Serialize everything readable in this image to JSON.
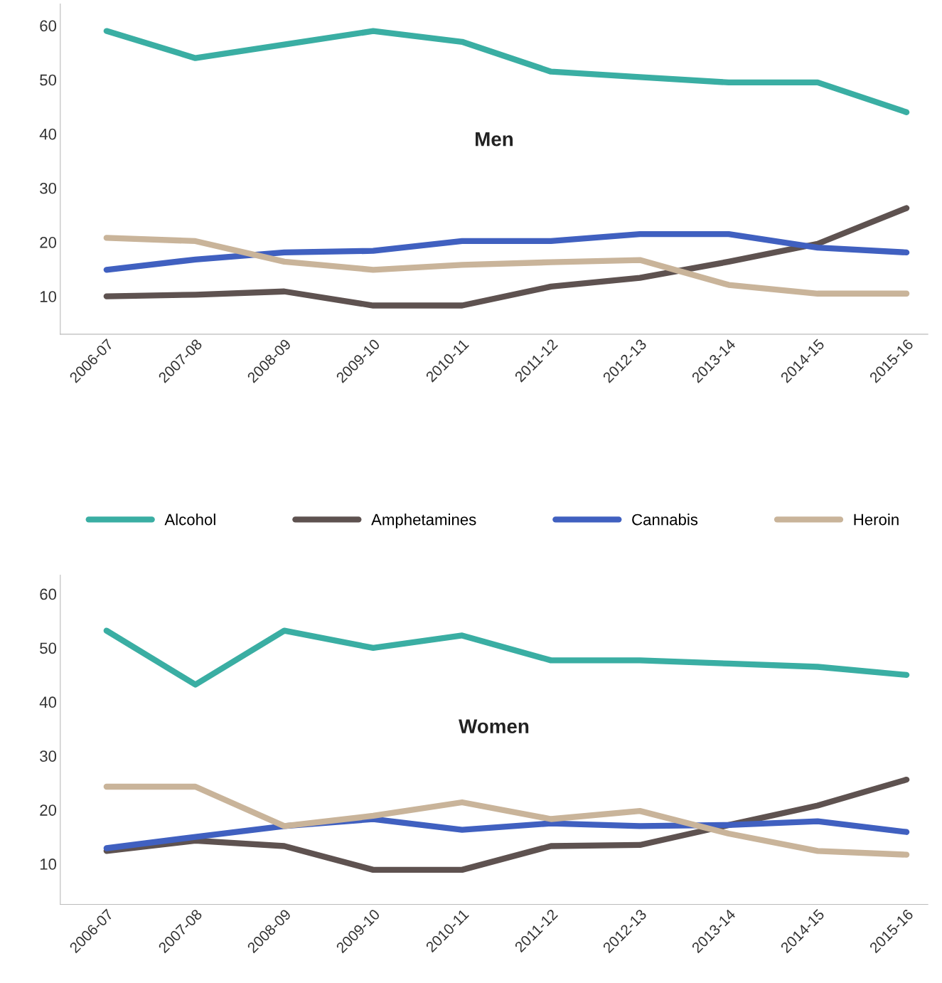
{
  "chart_data": [
    {
      "type": "line",
      "title": "Men",
      "categories": [
        "2006-07",
        "2007-08",
        "2008-09",
        "2009-10",
        "2010-11",
        "2011-12",
        "2012-13",
        "2013-14",
        "2014-15",
        "2015-16"
      ],
      "ylim": [
        3,
        64
      ],
      "yticks": [
        10,
        20,
        30,
        40,
        50,
        60
      ],
      "grid": false,
      "legend": "bottom",
      "line_style": "solid",
      "marker": "none",
      "series": [
        {
          "name": "Alcohol",
          "color": "#3aaea3",
          "values": [
            59,
            54,
            56.5,
            59,
            57,
            51.5,
            50.5,
            49.5,
            49.5,
            44
          ]
        },
        {
          "name": "Amphetamines",
          "color": "#5e5250",
          "values": [
            10,
            10.3,
            10.9,
            8.3,
            8.3,
            11.8,
            13.4,
            16.4,
            19.7,
            26.3
          ]
        },
        {
          "name": "Cannabis",
          "color": "#4060c0",
          "values": [
            14.9,
            16.8,
            18.1,
            18.4,
            20.2,
            20.2,
            21.5,
            21.5,
            19,
            18.1
          ]
        },
        {
          "name": "Heroin",
          "color": "#c9b49a",
          "values": [
            20.8,
            20.2,
            16.4,
            14.9,
            15.8,
            16.3,
            16.7,
            12.1,
            10.5,
            10.5
          ]
        }
      ]
    },
    {
      "type": "line",
      "title": "Women",
      "categories": [
        "2006-07",
        "2007-08",
        "2008-09",
        "2009-10",
        "2010-11",
        "2011-12",
        "2012-13",
        "2013-14",
        "2014-15",
        "2015-16"
      ],
      "ylim": [
        2.5,
        63.5
      ],
      "yticks": [
        10,
        20,
        30,
        40,
        50,
        60
      ],
      "grid": false,
      "legend": false,
      "line_style": "solid",
      "marker": "none",
      "series": [
        {
          "color": "#3aaea3",
          "values": [
            53.2,
            43.2,
            53.2,
            50,
            52.3,
            47.7,
            47.7,
            47.1,
            46.5,
            45
          ]
        },
        {
          "color": "#5e5250",
          "values": [
            12.4,
            14.3,
            13.3,
            8.9,
            8.9,
            13.3,
            13.5,
            17.2,
            20.8,
            25.6
          ]
        },
        {
          "color": "#4060c0",
          "values": [
            12.9,
            15,
            17,
            18.3,
            16.3,
            17.5,
            17,
            17.2,
            17.9,
            15.9
          ]
        },
        {
          "color": "#c9b49a",
          "values": [
            24.3,
            24.3,
            17,
            18.9,
            21.4,
            18.3,
            19.8,
            15.6,
            12.4,
            11.7
          ]
        }
      ]
    }
  ]
}
